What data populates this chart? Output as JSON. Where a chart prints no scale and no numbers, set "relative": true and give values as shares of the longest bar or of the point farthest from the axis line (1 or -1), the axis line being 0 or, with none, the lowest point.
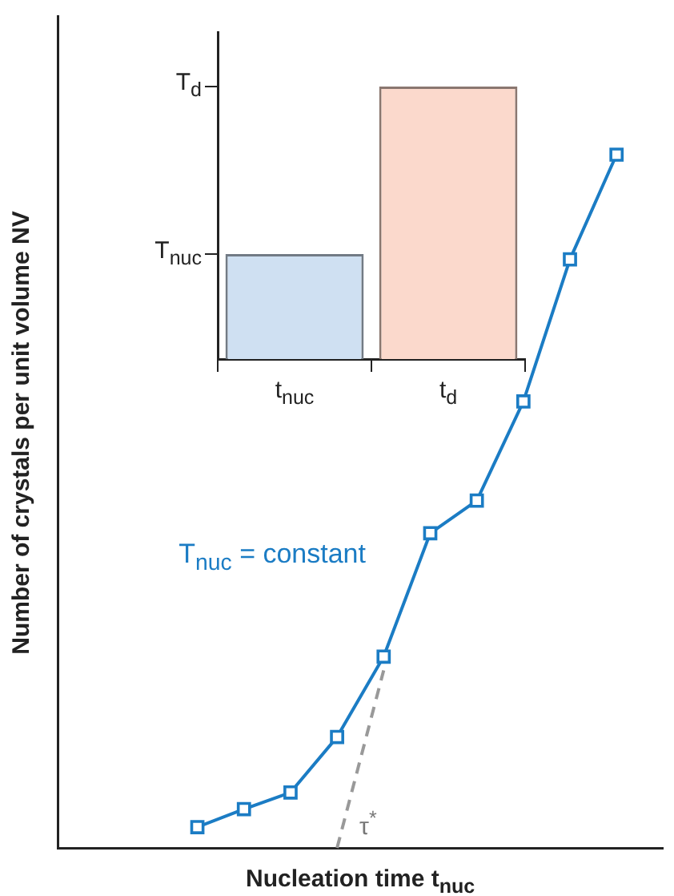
{
  "chart_data": [
    {
      "type": "line",
      "relative": true,
      "xlabel": "Nucleation time t$_{nuc}$",
      "ylabel": "Number of crystals per unit volume NV",
      "grid": false,
      "legend": false,
      "categories": [
        null,
        null,
        null,
        null,
        null,
        null,
        null,
        null,
        null,
        null,
        null,
        null,
        null,
        null
      ],
      "annotations": [
        "T$_{nuc}$ = constant",
        "τ$^{*}$"
      ],
      "series": [
        {
          "type": "line",
          "color": "#1b7cc4",
          "marker": "square",
          "values": [
            null,
            null,
            null,
            0.03,
            0.056,
            0.08,
            0.16,
            0.276,
            0.454,
            0.501,
            0.644,
            0.849,
            1,
            null
          ]
        },
        {
          "type": "line",
          "color": "#999999",
          "marker": "none",
          "line_style": "dashed",
          "values": [
            null,
            null,
            null,
            null,
            null,
            null,
            0,
            0.256,
            null,
            null,
            null,
            null,
            null,
            null
          ]
        }
      ]
    },
    {
      "type": "bar",
      "relative": true,
      "categories": [
        "t$_{nuc}$",
        "t$_{d}$"
      ],
      "values": [
        0.385,
        1
      ],
      "colors": [
        "#cfe0f2",
        "#fbd9cc"
      ],
      "annotations": [
        "T$_{nuc}$",
        "T$_{d}$"
      ],
      "grid": false,
      "legend": false
    }
  ]
}
